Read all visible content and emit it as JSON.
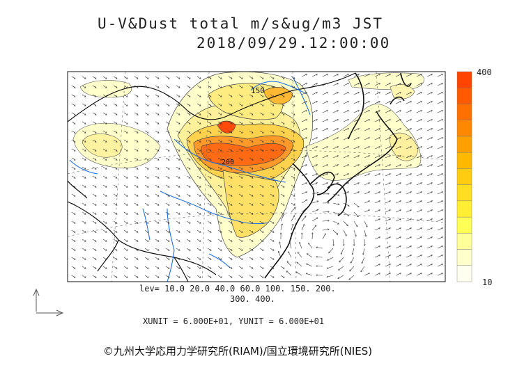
{
  "title": {
    "line1": "U-V&Dust total m/s&ug/m3 JST",
    "line2": "2018/09/29.12:00:00"
  },
  "map_labels": {
    "contour_150": "150",
    "contour_200": "200"
  },
  "legend": {
    "levels_line1": "lev= 10.0 20.0 40.0 60.0 100. 150. 200.",
    "levels_line2": "300. 400.",
    "levels": [
      10,
      20,
      40,
      60,
      100,
      150,
      200,
      300,
      400
    ],
    "max_label": "400",
    "min_label": "10",
    "colors": [
      "#fffff0",
      "#ffffcc",
      "#ffff99",
      "#ffff55",
      "#ffee33",
      "#ffdd22",
      "#ffcc11",
      "#ffb800",
      "#ffa000",
      "#ff8800",
      "#ff7000",
      "#ff5a00",
      "#ff4400"
    ]
  },
  "units": "XUNIT = 6.000E+01, YUNIT = 6.000E+01",
  "credit": "©九州大学応用力学研究所(RIAM)/国立環境研究所(NIES)"
}
